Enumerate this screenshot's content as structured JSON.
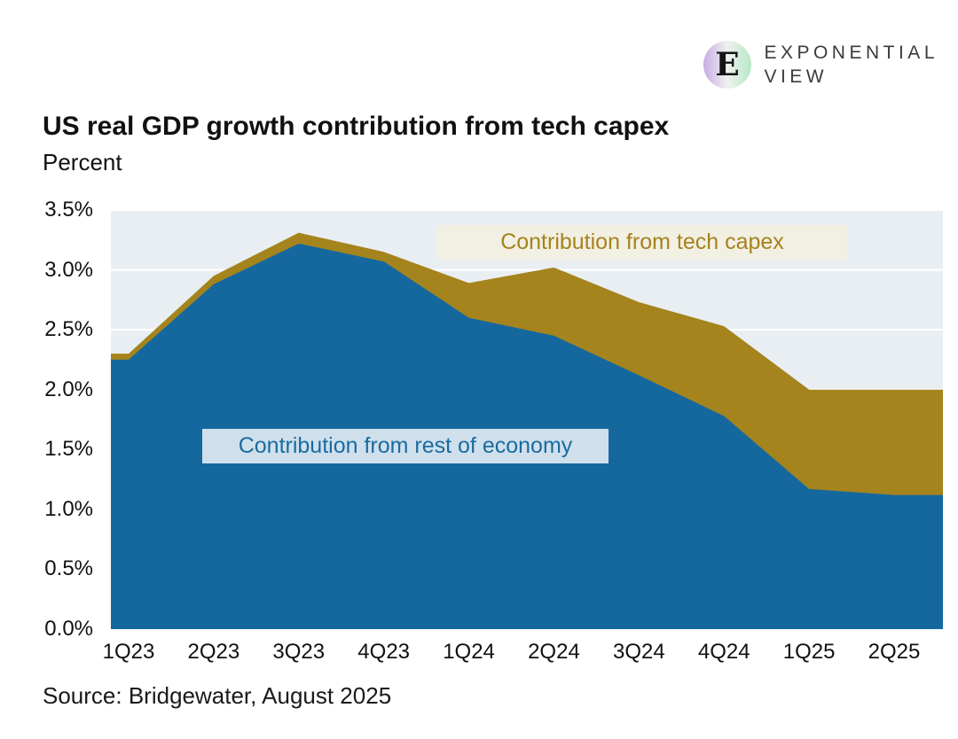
{
  "logo": {
    "line1": "EXPONENTIAL",
    "line2": "VIEW",
    "icon": "exponential-view-monogram",
    "icon_colors": {
      "left": "#c9abe6",
      "right": "#b7e7c6",
      "glyph": "#141414"
    }
  },
  "source": "Source: Bridgewater, August 2025",
  "colors": {
    "economy": "#15689e",
    "tech": "#a5841d",
    "plot_bg": "#e9eef3",
    "grid": "#ffffff",
    "tech_label_bg": "#f2efe3",
    "economy_label_bg": "#cfe0ec",
    "tech_label_text": "#a5831c",
    "economy_label_text": "#1a6ba1"
  },
  "chart_data": {
    "type": "area",
    "stacked": true,
    "title": "US real GDP growth contribution from tech capex",
    "subtitle": "Percent",
    "xlabel": "",
    "ylabel": "Percent",
    "grid": true,
    "legend_position": "in-plot annotations",
    "categories": [
      "1Q23",
      "2Q23",
      "3Q23",
      "4Q23",
      "1Q24",
      "2Q24",
      "3Q24",
      "4Q24",
      "1Q25",
      "2Q25"
    ],
    "series": [
      {
        "name": "Contribution from rest of economy",
        "color": "#15689e",
        "values": [
          2.25,
          2.88,
          3.22,
          3.07,
          2.6,
          2.45,
          2.12,
          1.78,
          1.17,
          1.12
        ]
      },
      {
        "name": "Contribution from tech capex",
        "color": "#a5841d",
        "values": [
          0.05,
          0.07,
          0.09,
          0.08,
          0.29,
          0.57,
          0.61,
          0.75,
          0.83,
          0.88
        ]
      }
    ],
    "totals": [
      2.3,
      2.95,
      3.31,
      3.15,
      2.89,
      3.02,
      2.73,
      2.53,
      2.0,
      2.0
    ],
    "ylim": [
      0,
      3.5
    ],
    "ytick_step": 0.5,
    "ytick_labels": [
      "0.0%",
      "0.5%",
      "1.0%",
      "1.5%",
      "2.0%",
      "2.5%",
      "3.0%",
      "3.5%"
    ],
    "annotations": {
      "tech": "Contribution from tech capex",
      "economy": "Contribution from rest of economy"
    }
  }
}
